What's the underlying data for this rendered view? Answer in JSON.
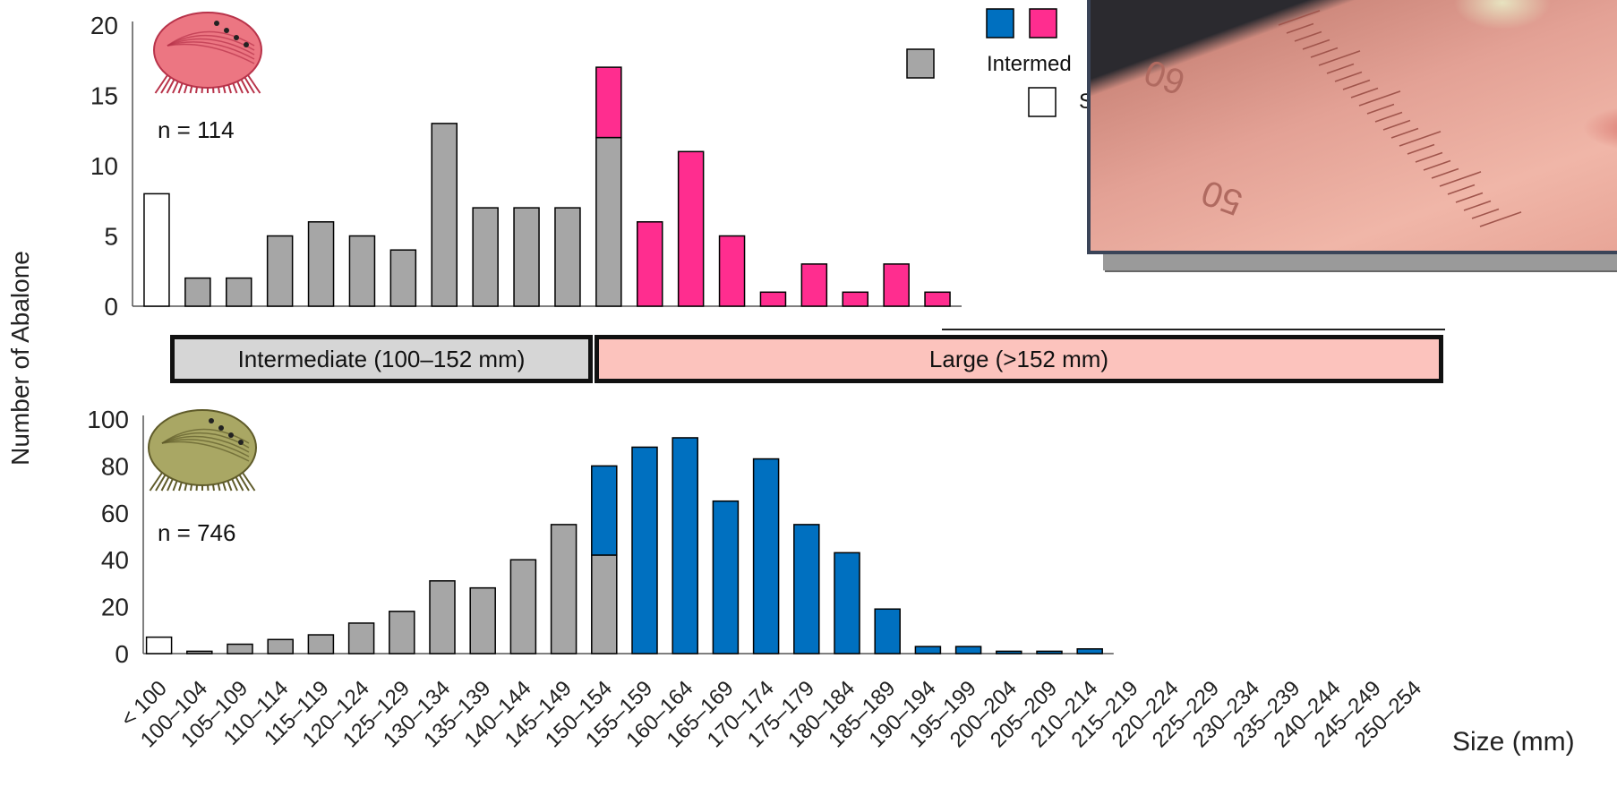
{
  "chart_data": [
    {
      "type": "bar",
      "stacked": true,
      "annotation": "n = 114",
      "ylim": [
        0,
        20
      ],
      "yticks": [
        0,
        5,
        10,
        15,
        20
      ],
      "categories": [
        "< 100",
        "100–104",
        "105–109",
        "110–114",
        "115–119",
        "120–124",
        "125–129",
        "130–134",
        "135–139",
        "140–144",
        "145–149",
        "150–154",
        "155–159",
        "160–164",
        "165–169",
        "170–174",
        "175–179",
        "180–184",
        "185–189",
        "190–194"
      ],
      "series": [
        {
          "color": "#ffffff",
          "values": [
            8,
            0,
            0,
            0,
            0,
            0,
            0,
            0,
            0,
            0,
            0,
            0,
            0,
            0,
            0,
            0,
            0,
            0,
            0,
            0
          ]
        },
        {
          "color": "#a6a6a6",
          "values": [
            0,
            2,
            2,
            5,
            6,
            5,
            4,
            13,
            7,
            7,
            7,
            12,
            0,
            0,
            0,
            0,
            0,
            0,
            0,
            0
          ]
        },
        {
          "color": "#ff2d8f",
          "values": [
            0,
            0,
            0,
            0,
            0,
            0,
            0,
            0,
            0,
            0,
            0,
            5,
            6,
            11,
            5,
            1,
            3,
            1,
            3,
            1
          ]
        }
      ]
    },
    {
      "type": "bar",
      "stacked": true,
      "annotation": "n = 746",
      "ylim": [
        0,
        100
      ],
      "yticks": [
        0,
        20,
        40,
        60,
        80,
        100
      ],
      "categories": [
        "< 100",
        "100–104",
        "105–109",
        "110–114",
        "115–119",
        "120–124",
        "125–129",
        "130–134",
        "135–139",
        "140–144",
        "145–149",
        "150–154",
        "155–159",
        "160–164",
        "165–169",
        "170–174",
        "175–179",
        "180–184",
        "185–189",
        "190–194",
        "195–199",
        "200–204",
        "205–209",
        "210–214",
        "215–219",
        "220–224",
        "225–229",
        "230–234",
        "235–239",
        "240–244",
        "245–249",
        "250–254"
      ],
      "series": [
        {
          "color": "#ffffff",
          "values": [
            7,
            0,
            0,
            0,
            0,
            0,
            0,
            0,
            0,
            0,
            0,
            0,
            0,
            0,
            0,
            0,
            0,
            0,
            0,
            0,
            0,
            0,
            0,
            0,
            0,
            0,
            0,
            0,
            0,
            0,
            0,
            0
          ]
        },
        {
          "color": "#a6a6a6",
          "values": [
            0,
            1,
            4,
            6,
            8,
            13,
            18,
            31,
            28,
            40,
            55,
            42,
            0,
            0,
            0,
            0,
            0,
            0,
            0,
            0,
            0,
            0,
            0,
            0,
            0,
            0,
            0,
            0,
            0,
            0,
            0,
            0
          ]
        },
        {
          "color": "#0070c0",
          "values": [
            0,
            0,
            0,
            0,
            0,
            0,
            0,
            0,
            0,
            0,
            0,
            38,
            88,
            92,
            65,
            83,
            55,
            43,
            19,
            3,
            3,
            1,
            1,
            2,
            0,
            0,
            0,
            0,
            0,
            0,
            0,
            0
          ]
        }
      ],
      "xlabel": "Size (mm)"
    }
  ],
  "ylabel": "Number of Abalone",
  "bands": {
    "intermediate": "Intermediate (100–152 mm)",
    "large": "Large (>152 mm)"
  },
  "legend": {
    "swatch_colors": [
      "#0070c0",
      "#ff2d8f",
      "#a6a6a6",
      "#ffffff"
    ],
    "text_intermediate": "Intermed",
    "text_small": "S"
  },
  "photo": {
    "ruler_labels": [
      "60",
      "50"
    ]
  }
}
